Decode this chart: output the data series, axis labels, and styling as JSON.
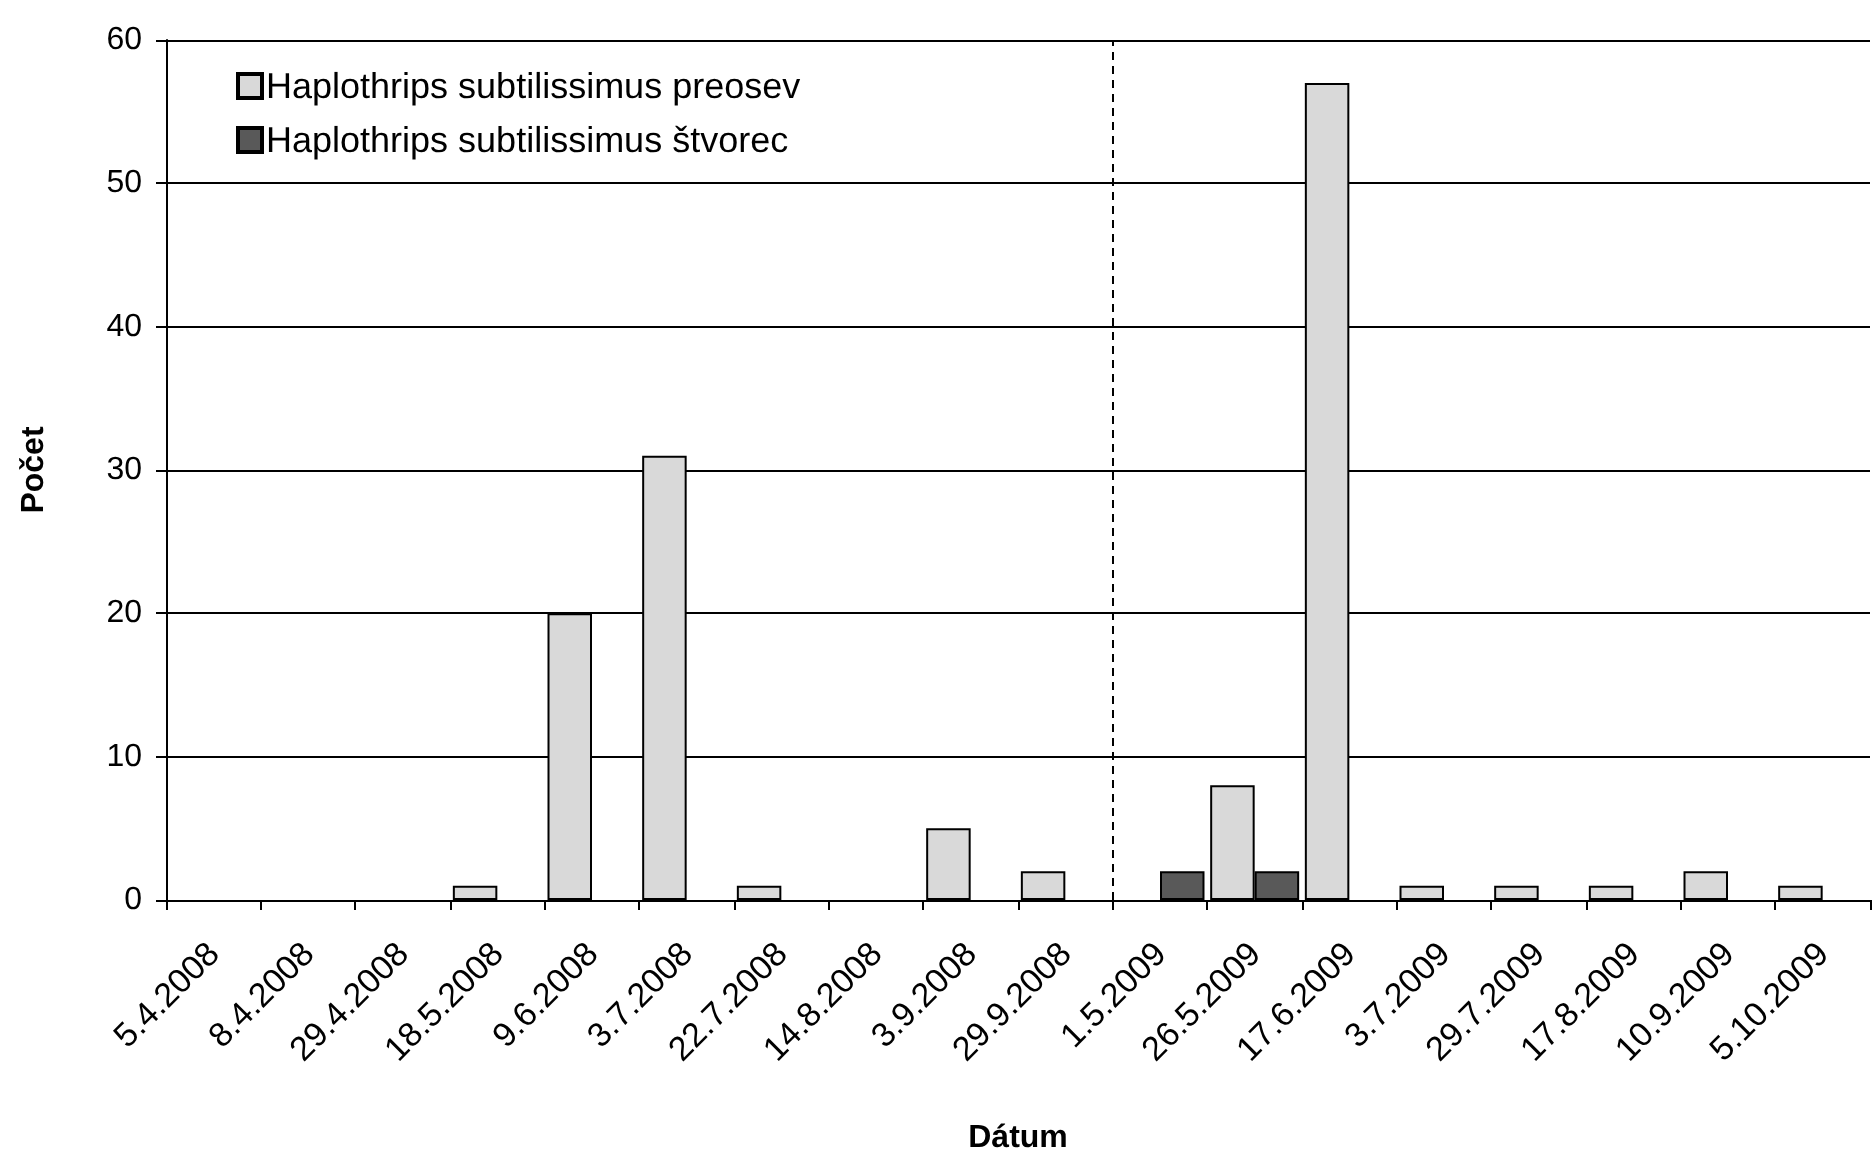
{
  "chart_data": {
    "type": "bar",
    "xlabel": "Dátum",
    "ylabel": "Počet",
    "categories": [
      "5.4.2008",
      "8.4.2008",
      "29.4.2008",
      "18.5.2008",
      "9.6.2008",
      "3.7.2008",
      "22.7.2008",
      "14.8.2008",
      "3.9.2008",
      "29.9.2008",
      "1.5.2009",
      "26.5.2009",
      "17.6.2009",
      "3.7.2009",
      "29.7.2009",
      "17.8.2009",
      "10.9.2009",
      "5.10.2009"
    ],
    "series": [
      {
        "name": "Haplothrips subtilissimus preosev",
        "color": "#d9d9d9",
        "values": [
          0,
          0,
          0,
          1,
          20,
          31,
          1,
          0,
          5,
          2,
          0,
          8,
          57,
          1,
          1,
          1,
          2,
          1
        ]
      },
      {
        "name": "Haplothrips subtilissimus štvorec",
        "color": "#595959",
        "values": [
          0,
          0,
          0,
          0,
          0,
          0,
          0,
          0,
          0,
          0,
          2,
          2,
          0,
          0,
          0,
          0,
          0,
          0
        ]
      }
    ],
    "ylim": [
      0,
      60
    ],
    "yticks": [
      0,
      10,
      20,
      30,
      40,
      50,
      60
    ],
    "grid": "y",
    "legend": "top left",
    "ref_lines": [
      {
        "axis": "x",
        "value": "1.5.2009",
        "color": "#000000",
        "line_style": "dashed"
      }
    ]
  }
}
